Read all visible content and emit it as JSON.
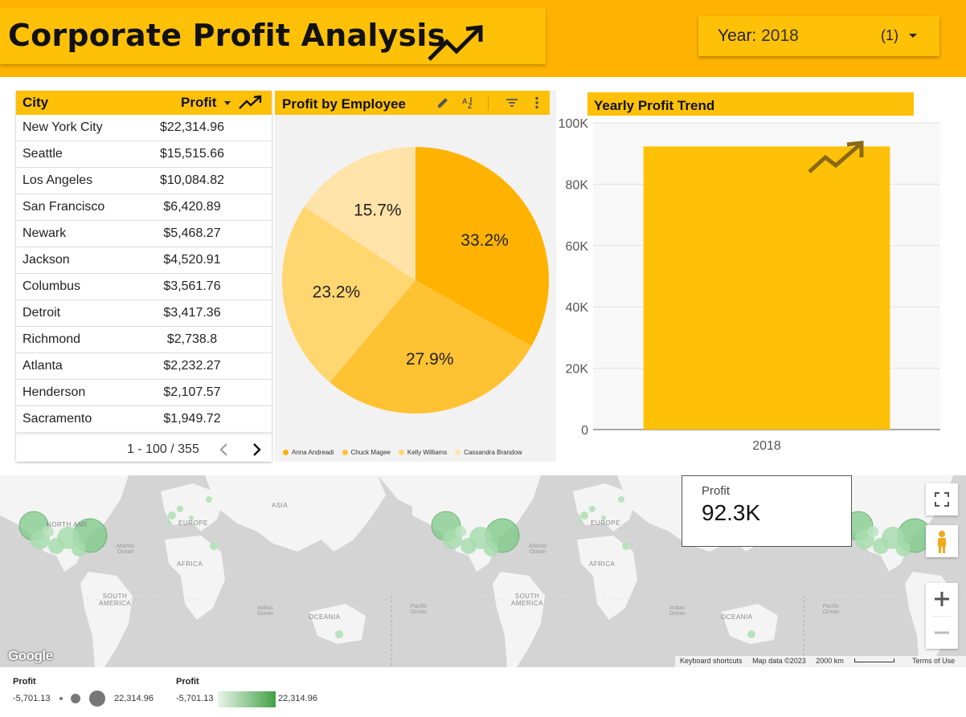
{
  "header": {
    "title": "Corporate Profit Analysis",
    "trend_icon": "trending-up-icon",
    "year_label": "Year:",
    "year_value": "2018",
    "year_count": "(1)"
  },
  "table": {
    "col_city": "City",
    "col_profit": "Profit",
    "rows": [
      {
        "city": "New York City",
        "profit": "$22,314.96"
      },
      {
        "city": "Seattle",
        "profit": "$15,515.66"
      },
      {
        "city": "Los Angeles",
        "profit": "$10,084.82"
      },
      {
        "city": "San Francisco",
        "profit": "$6,420.89"
      },
      {
        "city": "Newark",
        "profit": "$5,468.27"
      },
      {
        "city": "Jackson",
        "profit": "$4,520.91"
      },
      {
        "city": "Columbus",
        "profit": "$3,561.76"
      },
      {
        "city": "Detroit",
        "profit": "$3,417.36"
      },
      {
        "city": "Richmond",
        "profit": "$2,738.8"
      },
      {
        "city": "Atlanta",
        "profit": "$2,232.27"
      },
      {
        "city": "Henderson",
        "profit": "$2,107.57"
      },
      {
        "city": "Sacramento",
        "profit": "$1,949.72"
      }
    ],
    "pagination": "1 - 100 / 355"
  },
  "pie": {
    "title": "Profit by Employee"
  },
  "bar": {
    "title": "Yearly Profit Trend"
  },
  "colors": {
    "band": "#ffb300",
    "accent": "#ffc107",
    "pie": [
      "#ffb300",
      "#ffc233",
      "#ffd670",
      "#ffe3a8"
    ],
    "map_bubble": "#7fc98a"
  },
  "chart_data": [
    {
      "type": "pie",
      "title": "Profit by Employee",
      "labels": [
        "Anna Andreadi",
        "Chuck Magee",
        "Kelly Williams",
        "Cassandra Brandow"
      ],
      "values": [
        33.2,
        27.9,
        23.2,
        15.7
      ],
      "value_labels": [
        "33.2%",
        "27.9%",
        "23.2%",
        "15.7%"
      ],
      "legend": "bottom"
    },
    {
      "type": "bar",
      "title": "Yearly Profit Trend",
      "categories": [
        "2018"
      ],
      "values": [
        92300
      ],
      "ylim": [
        0,
        100000
      ],
      "yticks": [
        "0",
        "20K",
        "40K",
        "60K",
        "80K",
        "100K"
      ],
      "grid": true
    }
  ],
  "map": {
    "continents": [
      "ASIA",
      "EUROPE",
      "AFRICA",
      "SOUTH AMERICA",
      "OCEANIA",
      "NORTH AMERICA"
    ],
    "oceans": [
      "Atlantic Ocean",
      "Indian Ocean",
      "Pacific Ocean"
    ],
    "kpi_label": "Profit",
    "kpi_value": "92.3K",
    "google_logo": "Google",
    "attribution": [
      "Keyboard shortcuts",
      "Map data ©2023",
      "2000 km",
      "Terms of Use"
    ]
  },
  "map_legend": {
    "size_title": "Profit",
    "size_min": "-5,701.13",
    "size_max": "22,314.96",
    "color_title": "Profit",
    "color_min": "-5,701.13",
    "color_max": "22,314.96"
  }
}
